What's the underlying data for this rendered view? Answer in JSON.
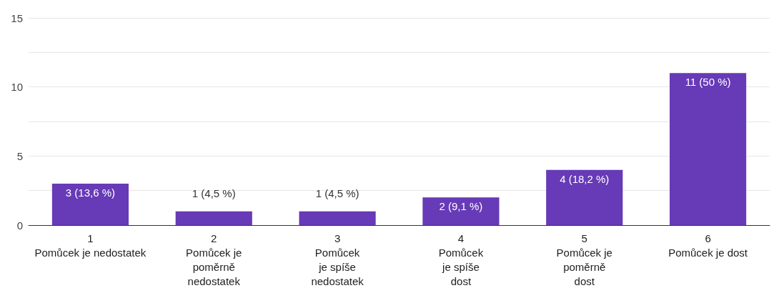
{
  "chart_data": {
    "type": "bar",
    "categories": [
      "1\nPomůcek je nedostatek",
      "2\nPomůcek je\npoměrně\nnedostatek",
      "3\nPomůcek\nje spíše\nnedostatek",
      "4\nPomůcek\nje spíše\ndost",
      "5\nPomůcek je\npoměrně\ndost",
      "6\nPomůcek je dost"
    ],
    "values": [
      3,
      1,
      1,
      2,
      4,
      11
    ],
    "value_labels": [
      "3 (13,6 %)",
      "1 (4,5 %)",
      "1 (4,5 %)",
      "2 (9,1 %)",
      "4 (18,2 %)",
      "11 (50 %)"
    ],
    "color": "#673ab7",
    "ylim": [
      0,
      15
    ],
    "yticks": [
      0,
      {
        "value": 2.5,
        "label": null
      },
      5,
      {
        "value": 7.5,
        "label": null
      },
      10,
      {
        "value": 12.5,
        "label": null
      },
      15
    ],
    "grid": "y"
  }
}
